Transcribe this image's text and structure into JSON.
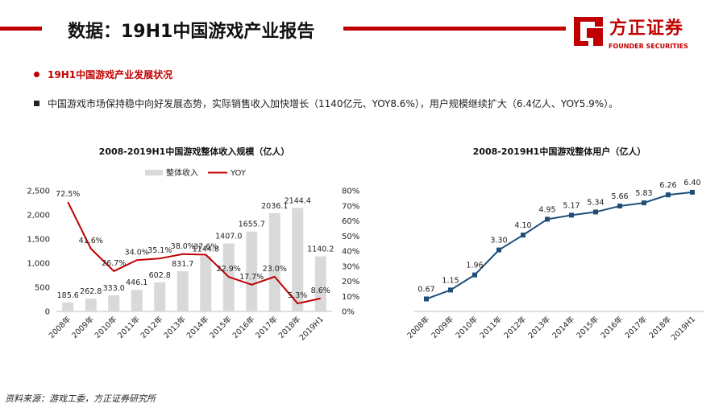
{
  "header": {
    "title": "数据：19H1中国游戏产业报告",
    "logo_cn": "方正证券",
    "logo_en": "FOUNDER SECURITIES",
    "accent_color": "#c00000"
  },
  "section_heading": "19H1中国游戏产业发展状况",
  "summary_text": "中国游戏市场保持稳中向好发展态势，实际销售收入加快增长（1140亿元、YOY8.6%），用户规模继续扩大（6.4亿人、YOY5.9%）。",
  "source_note": "资料来源：游戏工委，方正证券研究所",
  "chart_data": [
    {
      "type": "bar",
      "title": "2008-2019H1中国游戏整体收入规模（亿人）",
      "categories": [
        "2008年",
        "2009年",
        "2010年",
        "2011年",
        "2012年",
        "2013年",
        "2014年",
        "2015年",
        "2016年",
        "2017年",
        "2018年",
        "2019H1"
      ],
      "series": [
        {
          "name": "整体收入",
          "type": "bar",
          "axis": "left",
          "values": [
            185.6,
            262.8,
            333.0,
            446.1,
            602.8,
            831.7,
            1144.8,
            1407.0,
            1655.7,
            2036.1,
            2144.4,
            1140.2
          ],
          "labels": [
            "185.6",
            "262.8",
            "333.0",
            "446.1",
            "602.8",
            "831.7",
            "1144.8",
            "1407.0",
            "1655.7",
            "2036.1",
            "2144.4",
            "1140.2"
          ],
          "color": "#d9d9d9"
        },
        {
          "name": "YOY",
          "type": "line",
          "axis": "right",
          "values": [
            72.5,
            41.6,
            26.7,
            34.0,
            35.1,
            38.0,
            37.6,
            22.9,
            17.7,
            23.0,
            5.3,
            8.6
          ],
          "labels": [
            "72.5%",
            "41.6%",
            "26.7%",
            "34.0%",
            "35.1%",
            "38.0%",
            "37.6%",
            "22.9%",
            "17.7%",
            "23.0%",
            "5.3%",
            "8.6%"
          ],
          "color": "#c00000"
        }
      ],
      "ylim": [
        0,
        2500
      ],
      "yticks": [
        "0",
        "500",
        "1,000",
        "1,500",
        "2,000",
        "2,500"
      ],
      "y2lim": [
        0,
        80
      ],
      "y2ticks": [
        "0%",
        "10%",
        "20%",
        "30%",
        "40%",
        "50%",
        "60%",
        "70%",
        "80%"
      ],
      "legend": "top",
      "grid": false
    },
    {
      "type": "line",
      "title": "2008-2019H1中国游戏整体用户（亿人）",
      "categories": [
        "2008年",
        "2009年",
        "2010年",
        "2011年",
        "2012年",
        "2013年",
        "2014年",
        "2015年",
        "2016年",
        "2017年",
        "2018年",
        "2019H1"
      ],
      "series": [
        {
          "values": [
            0.67,
            1.15,
            1.96,
            3.3,
            4.1,
            4.95,
            5.17,
            5.34,
            5.66,
            5.83,
            6.26,
            6.4
          ],
          "labels": [
            "0.67",
            "1.15",
            "1.96",
            "3.30",
            "4.10",
            "4.95",
            "5.17",
            "5.34",
            "5.66",
            "5.83",
            "6.26",
            "6.40"
          ],
          "color": "#1f4e79"
        }
      ],
      "ylim": [
        0,
        7
      ],
      "axis_visible": false,
      "grid": false
    }
  ]
}
